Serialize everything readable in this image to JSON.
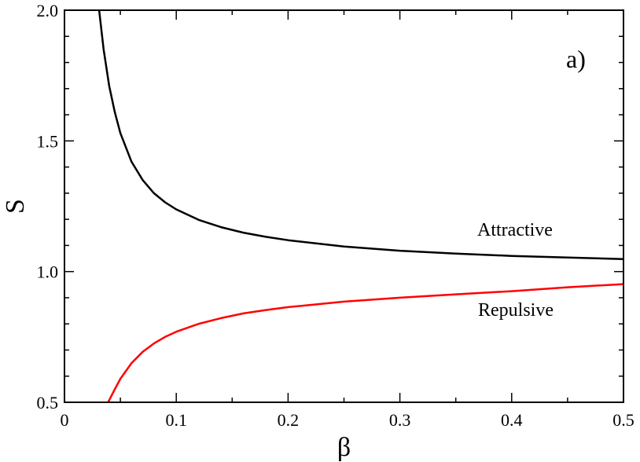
{
  "chart_data": {
    "type": "line",
    "title": "",
    "panel_label": "a)",
    "xlabel": "β",
    "ylabel": "S",
    "xlim": [
      0,
      0.5
    ],
    "ylim": [
      0.5,
      2.0
    ],
    "x_ticks": [
      0,
      0.1,
      0.2,
      0.3,
      0.4,
      0.5
    ],
    "x_tick_labels": [
      "0",
      "0.1",
      "0.2",
      "0.3",
      "0.4",
      "0.5"
    ],
    "y_ticks": [
      0.5,
      1.0,
      1.5,
      2.0
    ],
    "y_tick_labels": [
      "0.5",
      "1.0",
      "1.5",
      "2.0"
    ],
    "grid": false,
    "legend": "none",
    "series": [
      {
        "name": "Attractive",
        "color": "#000000",
        "x": [
          0.031,
          0.035,
          0.04,
          0.045,
          0.05,
          0.06,
          0.07,
          0.08,
          0.09,
          0.1,
          0.12,
          0.14,
          0.16,
          0.18,
          0.2,
          0.25,
          0.3,
          0.35,
          0.4,
          0.45,
          0.5
        ],
        "y": [
          2.0,
          1.85,
          1.71,
          1.61,
          1.53,
          1.42,
          1.35,
          1.3,
          1.265,
          1.238,
          1.198,
          1.17,
          1.149,
          1.133,
          1.12,
          1.096,
          1.08,
          1.069,
          1.06,
          1.054,
          1.048
        ]
      },
      {
        "name": "Repulsive",
        "color": "#ff0000",
        "x": [
          0.039,
          0.045,
          0.05,
          0.06,
          0.07,
          0.08,
          0.09,
          0.1,
          0.12,
          0.14,
          0.16,
          0.18,
          0.2,
          0.25,
          0.3,
          0.35,
          0.4,
          0.45,
          0.5
        ],
        "y": [
          0.5,
          0.55,
          0.59,
          0.65,
          0.693,
          0.725,
          0.75,
          0.77,
          0.8,
          0.822,
          0.84,
          0.853,
          0.864,
          0.885,
          0.9,
          0.913,
          0.925,
          0.94,
          0.952
        ]
      }
    ]
  }
}
